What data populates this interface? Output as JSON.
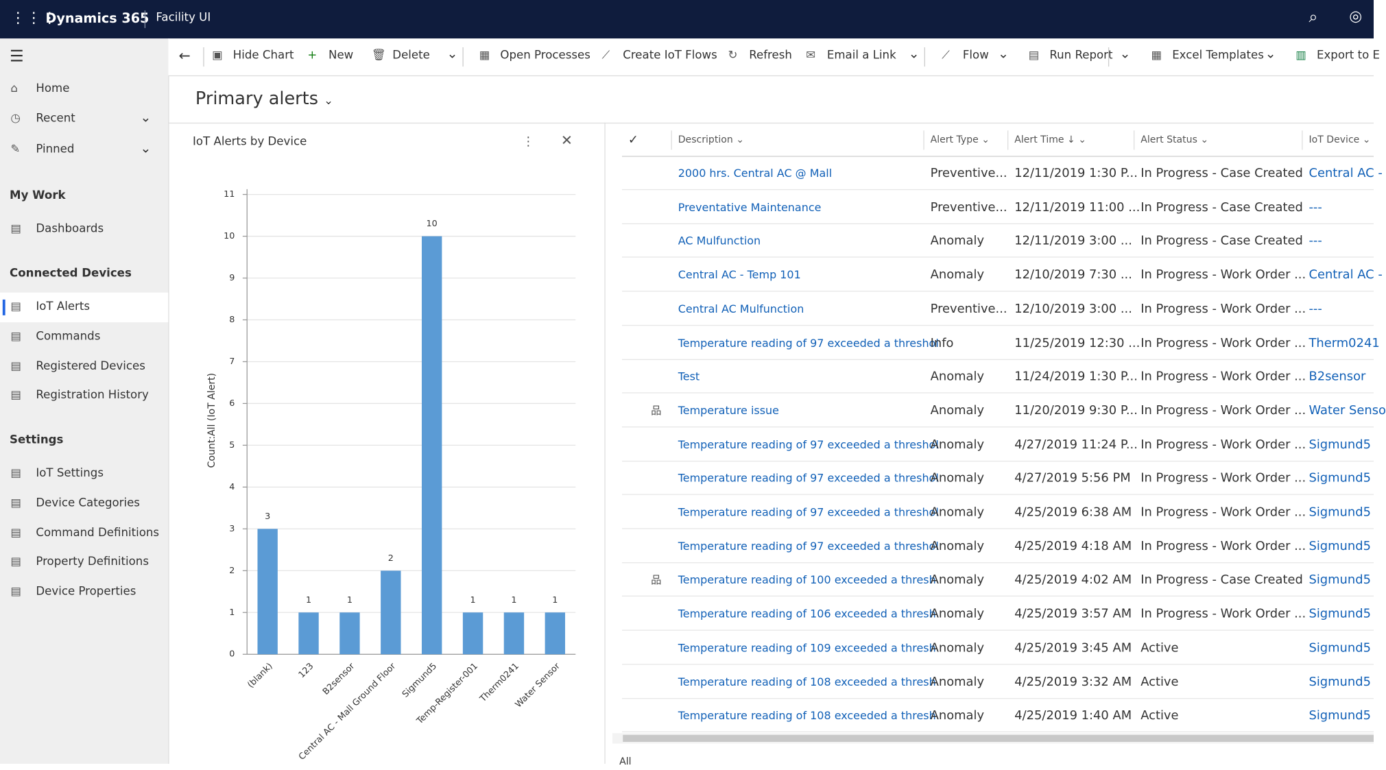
{
  "header": {
    "app": "Dynamics 365",
    "area": "Facility UI"
  },
  "toolbar": [
    "Hide Chart",
    "New",
    "Delete",
    "Open Processes",
    "Create IoT Flows",
    "Refresh",
    "Email a Link",
    "Flow",
    "Run Report",
    "Excel Templates",
    "Export to E"
  ],
  "nav": {
    "items": [
      "Home",
      "Recent",
      "Pinned"
    ],
    "groups": [
      {
        "title": "My Work",
        "items": [
          "Dashboards"
        ]
      },
      {
        "title": "Connected Devices",
        "items": [
          "IoT Alerts",
          "Commands",
          "Registered Devices",
          "Registration History"
        ]
      },
      {
        "title": "Settings",
        "items": [
          "IoT Settings",
          "Device Categories",
          "Command Definitions",
          "Property Definitions",
          "Device Properties"
        ]
      }
    ]
  },
  "view_title": "Primary alerts",
  "chart_data": {
    "type": "bar",
    "title": "IoT Alerts by Device",
    "y_label": "Count:All (IoT Alert)",
    "categories": [
      "(blank)",
      "123",
      "B2sensor",
      "Central AC - Mall Ground Floor",
      "Sigmund5",
      "Temp-Register-001",
      "Therm0241",
      "Water Sensor"
    ],
    "values": [
      3,
      1,
      1,
      2,
      10,
      1,
      1,
      1
    ],
    "color": "#5b9bd5",
    "ylim": [
      0,
      11
    ],
    "yticks": [
      0,
      1,
      2,
      3,
      4,
      5,
      6,
      7,
      8,
      9,
      10,
      11
    ],
    "grid": true
  },
  "grid": {
    "columns": [
      "Description",
      "Alert Type",
      "Alert Time",
      "Alert Status",
      "IoT Device"
    ],
    "rows": [
      [
        "2000 hrs. Central AC @ Mall",
        "Preventive...",
        "12/11/2019 1:30 P...",
        "In Progress - Case Created",
        "Central AC -"
      ],
      [
        "Preventative Maintenance",
        "Preventive...",
        "12/11/2019 11:00 ...",
        "In Progress - Case Created",
        "---"
      ],
      [
        "AC Mulfunction",
        "Anomaly",
        "12/11/2019 3:00 ...",
        "In Progress - Case Created",
        "---"
      ],
      [
        "Central AC - Temp 101",
        "Anomaly",
        "12/10/2019 7:30 ...",
        "In Progress - Work Order ...",
        "Central AC -"
      ],
      [
        "Central AC Mulfunction",
        "Preventive...",
        "12/10/2019 3:00 ...",
        "In Progress - Work Order ...",
        "---"
      ],
      [
        "Temperature reading of 97 exceeded a threshol",
        "Info",
        "11/25/2019 12:30 ...",
        "In Progress - Work Order ...",
        "Therm0241"
      ],
      [
        "Test",
        "Anomaly",
        "11/24/2019 1:30 P...",
        "In Progress - Work Order ...",
        "B2sensor"
      ],
      [
        "Temperature issue",
        "Anomaly",
        "11/20/2019 9:30 P...",
        "In Progress - Work Order ...",
        "Water Senso"
      ],
      [
        "Temperature reading of 97 exceeded a threshol",
        "Anomaly",
        "4/27/2019 11:24 P...",
        "In Progress - Work Order ...",
        "Sigmund5"
      ],
      [
        "Temperature reading of 97 exceeded a threshol",
        "Anomaly",
        "4/27/2019 5:56 PM",
        "In Progress - Work Order ...",
        "Sigmund5"
      ],
      [
        "Temperature reading of 97 exceeded a threshol",
        "Anomaly",
        "4/25/2019 6:38 AM",
        "In Progress - Work Order ...",
        "Sigmund5"
      ],
      [
        "Temperature reading of 97 exceeded a threshol",
        "Anomaly",
        "4/25/2019 4:18 AM",
        "In Progress - Work Order ...",
        "Sigmund5"
      ],
      [
        "Temperature reading of 100 exceeded a thresh",
        "Anomaly",
        "4/25/2019 4:02 AM",
        "In Progress - Case Created",
        "Sigmund5"
      ],
      [
        "Temperature reading of 106 exceeded a thresh",
        "Anomaly",
        "4/25/2019 3:57 AM",
        "In Progress - Work Order ...",
        "Sigmund5"
      ],
      [
        "Temperature reading of 109 exceeded a thresh",
        "Anomaly",
        "4/25/2019 3:45 AM",
        "Active",
        "Sigmund5"
      ],
      [
        "Temperature reading of 108 exceeded a thresh",
        "Anomaly",
        "4/25/2019 3:32 AM",
        "Active",
        "Sigmund5"
      ],
      [
        "Temperature reading of 108 exceeded a thresh",
        "Anomaly",
        "4/25/2019 1:40 AM",
        "Active",
        "Sigmund5"
      ]
    ]
  },
  "jump_bar": [
    "All"
  ]
}
